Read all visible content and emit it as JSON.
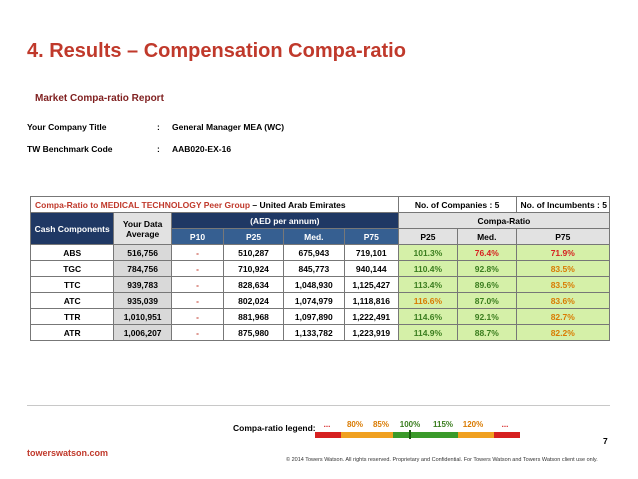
{
  "title": "4. Results – Compensation Compa-ratio",
  "subtitle": "Market Compa-ratio Report",
  "meta": {
    "company_title_label": "Your Company Title",
    "company_title_value": "General Manager MEA (WC)",
    "benchmark_label": "TW Benchmark Code",
    "benchmark_value": "AAB020-EX-16",
    "sep": ":"
  },
  "table": {
    "peer_prefix": "Compa-Ratio to MEDICAL TECHNOLOGY Peer Group",
    "peer_suffix": " – United Arab Emirates",
    "companies": "No. of Companies : 5",
    "incumbents": "No. of Incumbents  :  5",
    "col_cash": "Cash Components",
    "col_yourdata": "Your Data Average",
    "col_aed": "(AED per annum)",
    "col_compa": "Compa-Ratio",
    "sub_p10": "P10",
    "sub_p25": "P25",
    "sub_med": "Med.",
    "sub_p75": "P75",
    "rows": [
      {
        "name": "ABS",
        "yd": "516,756",
        "p10": "-",
        "p25": "510,287",
        "med": "675,943",
        "p75": "719,101",
        "c25": "101.3%",
        "cmed": "76.4%",
        "c75": "71.9%"
      },
      {
        "name": "TGC",
        "yd": "784,756",
        "p10": "-",
        "p25": "710,924",
        "med": "845,773",
        "p75": "940,144",
        "c25": "110.4%",
        "cmed": "92.8%",
        "c75": "83.5%"
      },
      {
        "name": "TTC",
        "yd": "939,783",
        "p10": "-",
        "p25": "828,634",
        "med": "1,048,930",
        "p75": "1,125,427",
        "c25": "113.4%",
        "cmed": "89.6%",
        "c75": "83.5%"
      },
      {
        "name": "ATC",
        "yd": "935,039",
        "p10": "-",
        "p25": "802,024",
        "med": "1,074,979",
        "p75": "1,118,816",
        "c25": "116.6%",
        "cmed": "87.0%",
        "c75": "83.6%"
      },
      {
        "name": "TTR",
        "yd": "1,010,951",
        "p10": "-",
        "p25": "881,968",
        "med": "1,097,890",
        "p75": "1,222,491",
        "c25": "114.6%",
        "cmed": "92.1%",
        "c75": "82.7%"
      },
      {
        "name": "ATR",
        "yd": "1,006,207",
        "p10": "-",
        "p25": "875,980",
        "med": "1,133,782",
        "p75": "1,223,919",
        "c25": "114.9%",
        "cmed": "88.7%",
        "c75": "82.2%"
      }
    ]
  },
  "legend": {
    "label": "Compa-ratio legend:",
    "items": [
      "...",
      "80%",
      "85%",
      "100%",
      "115%",
      "120%",
      "..."
    ]
  },
  "colors": {
    "green": "#3a7d1e",
    "orange": "#d97a00",
    "red": "#d62020",
    "title": "#c0392b"
  },
  "footer": {
    "brand": "towerswatson.com",
    "page": "7",
    "copyright": "© 2014 Towers Watson. All rights reserved. Proprietary and Confidential. For Towers Watson and Towers Watson client use only."
  }
}
